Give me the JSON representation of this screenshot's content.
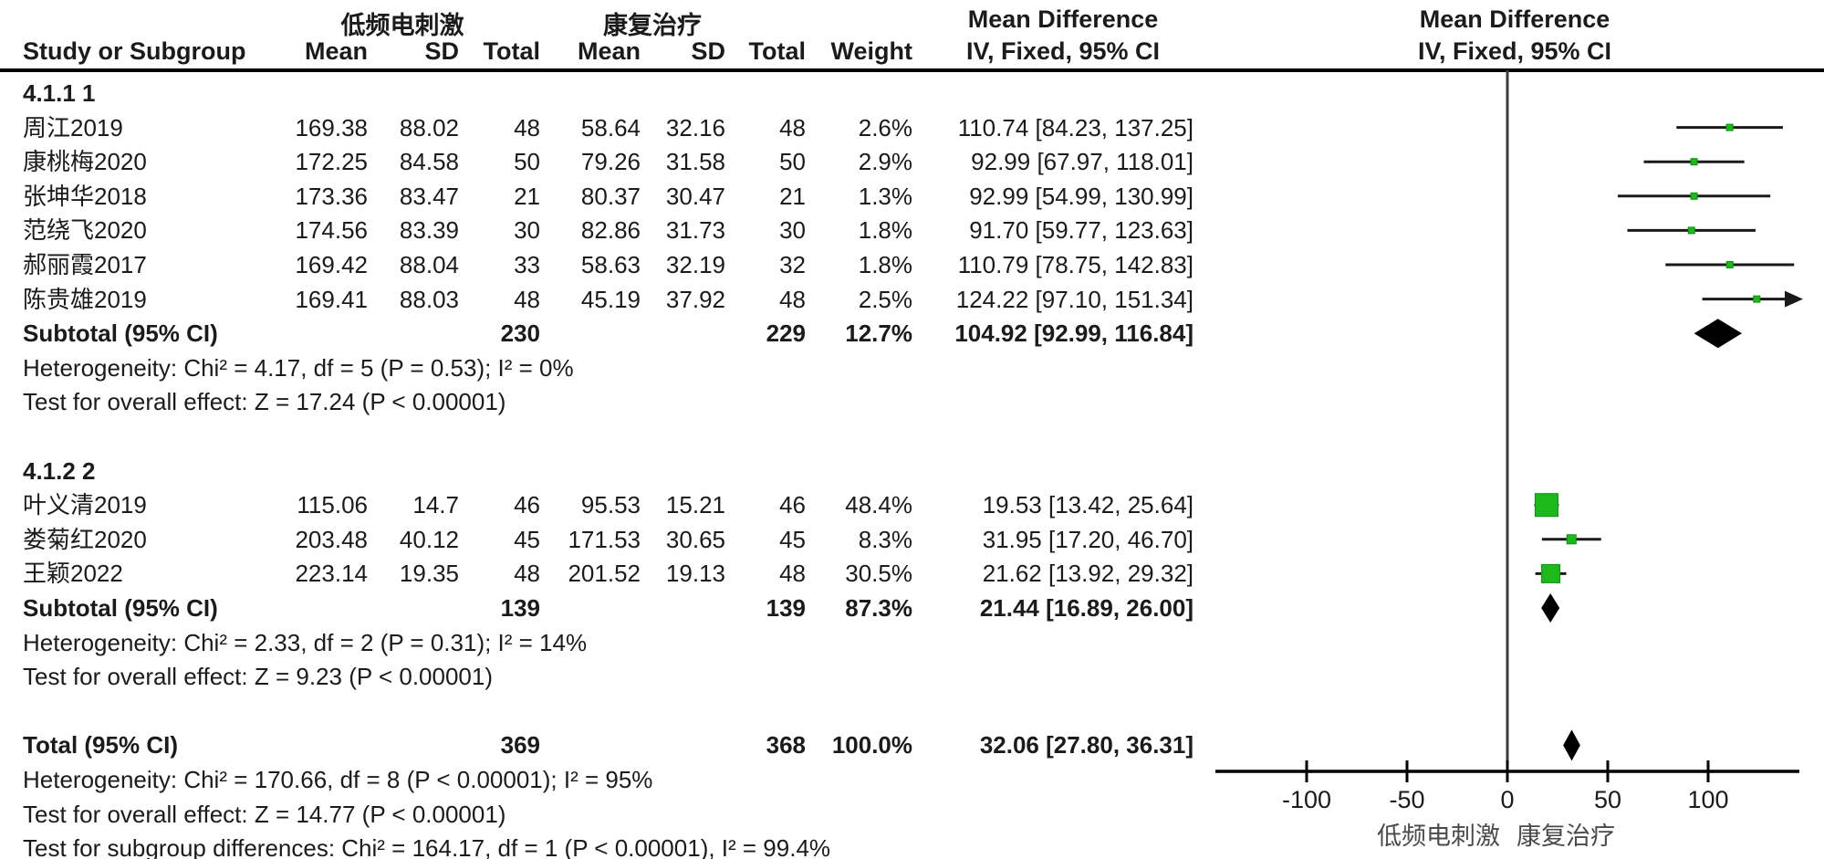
{
  "chart_data": {
    "type": "forest",
    "title": "",
    "header": {
      "group1_label": "低频电刺激",
      "group2_label": "康复治疗",
      "col_study": "Study or Subgroup",
      "col_mean": "Mean",
      "col_sd": "SD",
      "col_total": "Total",
      "col_weight": "Weight",
      "md_title": "Mean Difference",
      "md_subtitle": "IV, Fixed, 95% CI",
      "plot_md_title": "Mean Difference",
      "plot_md_subtitle": "IV, Fixed, 95% CI"
    },
    "subgroups": [
      {
        "title": "4.1.1 1",
        "studies": [
          {
            "name": "周江2019",
            "mean1": "169.38",
            "sd1": "88.02",
            "total1": "48",
            "mean2": "58.64",
            "sd2": "32.16",
            "total2": "48",
            "weight": "2.6%",
            "weight_pct": 2.6,
            "ci_text": "110.74 [84.23, 137.25]",
            "md": 110.74,
            "lo": 84.23,
            "hi": 137.25
          },
          {
            "name": "康桃梅2020",
            "mean1": "172.25",
            "sd1": "84.58",
            "total1": "50",
            "mean2": "79.26",
            "sd2": "31.58",
            "total2": "50",
            "weight": "2.9%",
            "weight_pct": 2.9,
            "ci_text": "92.99 [67.97, 118.01]",
            "md": 92.99,
            "lo": 67.97,
            "hi": 118.01
          },
          {
            "name": "张坤华2018",
            "mean1": "173.36",
            "sd1": "83.47",
            "total1": "21",
            "mean2": "80.37",
            "sd2": "30.47",
            "total2": "21",
            "weight": "1.3%",
            "weight_pct": 1.3,
            "ci_text": "92.99 [54.99, 130.99]",
            "md": 92.99,
            "lo": 54.99,
            "hi": 130.99
          },
          {
            "name": "范绕飞2020",
            "mean1": "174.56",
            "sd1": "83.39",
            "total1": "30",
            "mean2": "82.86",
            "sd2": "31.73",
            "total2": "30",
            "weight": "1.8%",
            "weight_pct": 1.8,
            "ci_text": "91.70 [59.77, 123.63]",
            "md": 91.7,
            "lo": 59.77,
            "hi": 123.63
          },
          {
            "name": "郝丽霞2017",
            "mean1": "169.42",
            "sd1": "88.04",
            "total1": "33",
            "mean2": "58.63",
            "sd2": "32.19",
            "total2": "32",
            "weight": "1.8%",
            "weight_pct": 1.8,
            "ci_text": "110.79 [78.75, 142.83]",
            "md": 110.79,
            "lo": 78.75,
            "hi": 142.83
          },
          {
            "name": "陈贵雄2019",
            "mean1": "169.41",
            "sd1": "88.03",
            "total1": "48",
            "mean2": "45.19",
            "sd2": "37.92",
            "total2": "48",
            "weight": "2.5%",
            "weight_pct": 2.5,
            "ci_text": "124.22 [97.10, 151.34]",
            "md": 124.22,
            "lo": 97.1,
            "hi": 151.34
          }
        ],
        "subtotal": {
          "label": "Subtotal (95% CI)",
          "total1": "230",
          "total2": "229",
          "weight": "12.7%",
          "ci_text": "104.92 [92.99, 116.84]",
          "md": 104.92,
          "lo": 92.99,
          "hi": 116.84
        },
        "heterogeneity": "Heterogeneity: Chi² = 4.17, df = 5 (P = 0.53); I² = 0%",
        "overall_effect": "Test for overall effect: Z = 17.24 (P < 0.00001)"
      },
      {
        "title": "4.1.2 2",
        "studies": [
          {
            "name": "叶义清2019",
            "mean1": "115.06",
            "sd1": "14.7",
            "total1": "46",
            "mean2": "95.53",
            "sd2": "15.21",
            "total2": "46",
            "weight": "48.4%",
            "weight_pct": 48.4,
            "ci_text": "19.53 [13.42, 25.64]",
            "md": 19.53,
            "lo": 13.42,
            "hi": 25.64
          },
          {
            "name": "娄菊红2020",
            "mean1": "203.48",
            "sd1": "40.12",
            "total1": "45",
            "mean2": "171.53",
            "sd2": "30.65",
            "total2": "45",
            "weight": "8.3%",
            "weight_pct": 8.3,
            "ci_text": "31.95 [17.20, 46.70]",
            "md": 31.95,
            "lo": 17.2,
            "hi": 46.7
          },
          {
            "name": "王颖2022",
            "mean1": "223.14",
            "sd1": "19.35",
            "total1": "48",
            "mean2": "201.52",
            "sd2": "19.13",
            "total2": "48",
            "weight": "30.5%",
            "weight_pct": 30.5,
            "ci_text": "21.62 [13.92, 29.32]",
            "md": 21.62,
            "lo": 13.92,
            "hi": 29.32
          }
        ],
        "subtotal": {
          "label": "Subtotal (95% CI)",
          "total1": "139",
          "total2": "139",
          "weight": "87.3%",
          "ci_text": "21.44 [16.89, 26.00]",
          "md": 21.44,
          "lo": 16.89,
          "hi": 26.0
        },
        "heterogeneity": "Heterogeneity: Chi² = 2.33, df = 2 (P = 0.31); I² = 14%",
        "overall_effect": "Test for overall effect: Z = 9.23 (P < 0.00001)"
      }
    ],
    "total": {
      "label": "Total (95% CI)",
      "total1": "369",
      "total2": "368",
      "weight": "100.0%",
      "ci_text": "32.06 [27.80, 36.31]",
      "md": 32.06,
      "lo": 27.8,
      "hi": 36.31,
      "heterogeneity": "Heterogeneity: Chi² = 170.66, df = 8 (P < 0.00001); I² = 95%",
      "overall_effect": "Test for overall effect: Z = 14.77 (P < 0.00001)",
      "subgroup_diff": "Test for subgroup differences: Chi² = 164.17, df = 1 (P < 0.00001), I² = 99.4%"
    },
    "axis": {
      "ticks": [
        -100,
        -50,
        0,
        50,
        100
      ],
      "tick_labels": [
        "-100",
        "-50",
        "0",
        "50",
        "100"
      ],
      "range": [
        -145.5,
        145.5
      ],
      "caption_left": "低频电刺激",
      "caption_right": "康复治疗"
    },
    "colors": {
      "square_fill": "#1cb81c",
      "square_edge": "#0d930d",
      "diamond": "#000000",
      "line": "#1a1a1a",
      "text": "#1b1b1b",
      "caption": "#4a4a4a"
    }
  }
}
